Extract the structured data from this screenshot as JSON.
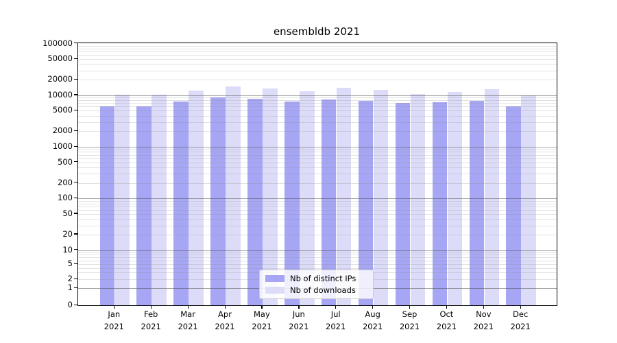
{
  "title": "ensembldb 2021",
  "chart_data": {
    "type": "bar",
    "title": "ensembldb 2021",
    "categories": [
      "Jan 2021",
      "Feb 2021",
      "Mar 2021",
      "Apr 2021",
      "May 2021",
      "Jun 2021",
      "Jul 2021",
      "Aug 2021",
      "Sep 2021",
      "Oct 2021",
      "Nov 2021",
      "Dec 2021"
    ],
    "x_tick_months": [
      "Jan",
      "Feb",
      "Mar",
      "Apr",
      "May",
      "Jun",
      "Jul",
      "Aug",
      "Sep",
      "Oct",
      "Nov",
      "Dec"
    ],
    "x_tick_year": "2021",
    "series": [
      {
        "name": "Nb of distinct IPs",
        "color": "#a6a6f4",
        "values": [
          6000,
          6050,
          7450,
          8950,
          8400,
          7600,
          8250,
          7800,
          7000,
          7250,
          7850,
          6000
        ]
      },
      {
        "name": "Nb of downloads",
        "color": "#dcdcf9",
        "values": [
          10100,
          10300,
          12300,
          14600,
          13300,
          12000,
          14000,
          12500,
          10650,
          11650,
          12950,
          10000
        ]
      }
    ],
    "ylabel": "",
    "xlabel": "",
    "ylim": [
      0,
      100000
    ],
    "yscale": "log-with-zero-baseline",
    "ytick_labels": [
      "100000",
      "50000",
      "20000",
      "10000",
      "5000",
      "2000",
      "1000",
      "500",
      "200",
      "100",
      "50",
      "20",
      "10",
      "5",
      "2",
      "1",
      "0"
    ],
    "ytick_values": [
      100000,
      50000,
      20000,
      10000,
      5000,
      2000,
      1000,
      500,
      200,
      100,
      50,
      20,
      10,
      5,
      2,
      1,
      0
    ],
    "grid": true,
    "legend_position": "bottom-center"
  },
  "colors": {
    "bar_distinct_ips": "#a6a6f4",
    "bar_downloads": "#dcdcf9",
    "major_gridline": "#a5a5a5",
    "minor_gridline": "#e2e2e2",
    "axis_frame": "#000000",
    "legend_border": "#cccccc"
  }
}
